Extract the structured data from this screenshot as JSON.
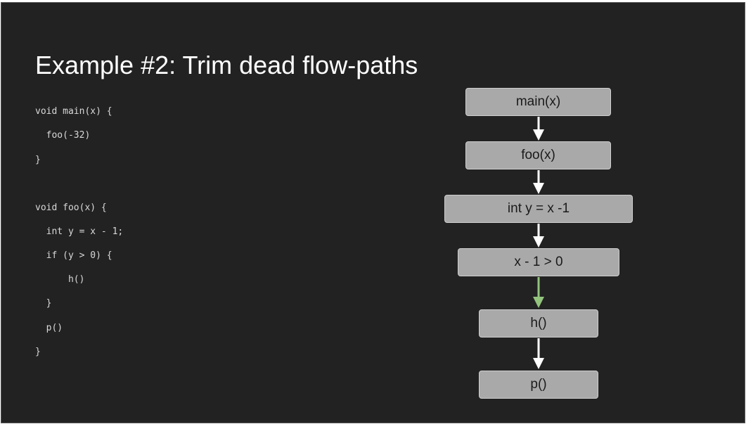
{
  "slide": {
    "title": "Example #2: Trim dead flow-paths"
  },
  "code": {
    "lines": [
      "void main(x) {",
      "  foo(-32)",
      "}",
      "",
      "void foo(x) {",
      "  int y = x - 1;",
      "  if (y > 0) {",
      "      h()",
      "  }",
      "  p()",
      "}"
    ]
  },
  "diagram": {
    "nodes": [
      "main(x)",
      "foo(x)",
      "int y = x -1",
      "x - 1 > 0",
      "h()",
      "p()"
    ],
    "edges": [
      {
        "from": "main(x)",
        "to": "foo(x)",
        "color": "#ffffff"
      },
      {
        "from": "foo(x)",
        "to": "int y = x -1",
        "color": "#ffffff"
      },
      {
        "from": "int y = x -1",
        "to": "x - 1 > 0",
        "color": "#ffffff"
      },
      {
        "from": "x - 1 > 0",
        "to": "h()",
        "color": "#93c47d"
      },
      {
        "from": "h()",
        "to": "p()",
        "color": "#ffffff"
      }
    ]
  },
  "colors": {
    "background": "#222222",
    "node_fill": "#a9a9a9",
    "taken_edge": "#93c47d",
    "default_edge": "#ffffff"
  }
}
